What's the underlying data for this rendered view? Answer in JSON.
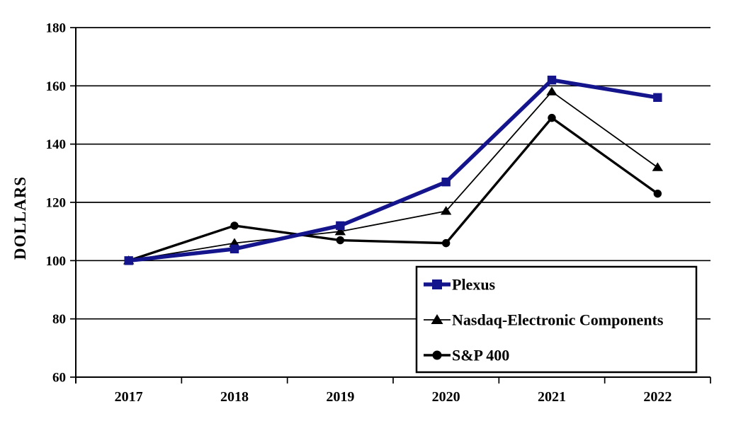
{
  "colors": {
    "background": "#FFFFFF",
    "axis_and_grid": "#000000",
    "plexus_blue": "#14148C",
    "black_series": "#000000",
    "legend_fill": "#FFFFFF",
    "legend_border": "#000000"
  },
  "chart_data": {
    "type": "line",
    "title": "",
    "xlabel": "",
    "ylabel": "DOLLARS",
    "categories": [
      "2017",
      "2018",
      "2019",
      "2020",
      "2021",
      "2022"
    ],
    "yticks": [
      60,
      80,
      100,
      120,
      140,
      160,
      180
    ],
    "ylim": [
      60,
      180
    ],
    "grid": true,
    "legend_position": "inside-bottom-right",
    "series": [
      {
        "name": "Plexus",
        "values": [
          100,
          104,
          112,
          127,
          162,
          156
        ],
        "color": "#14148C",
        "marker": "square",
        "line_width": 5.5
      },
      {
        "name": "Nasdaq-Electronic Components",
        "values": [
          100,
          106,
          110,
          117,
          158,
          132
        ],
        "color": "#000000",
        "marker": "triangle",
        "line_width": 1.8
      },
      {
        "name": "S&P 400",
        "values": [
          100,
          112,
          107,
          106,
          149,
          123
        ],
        "color": "#000000",
        "marker": "circle",
        "line_width": 3.4
      }
    ]
  }
}
